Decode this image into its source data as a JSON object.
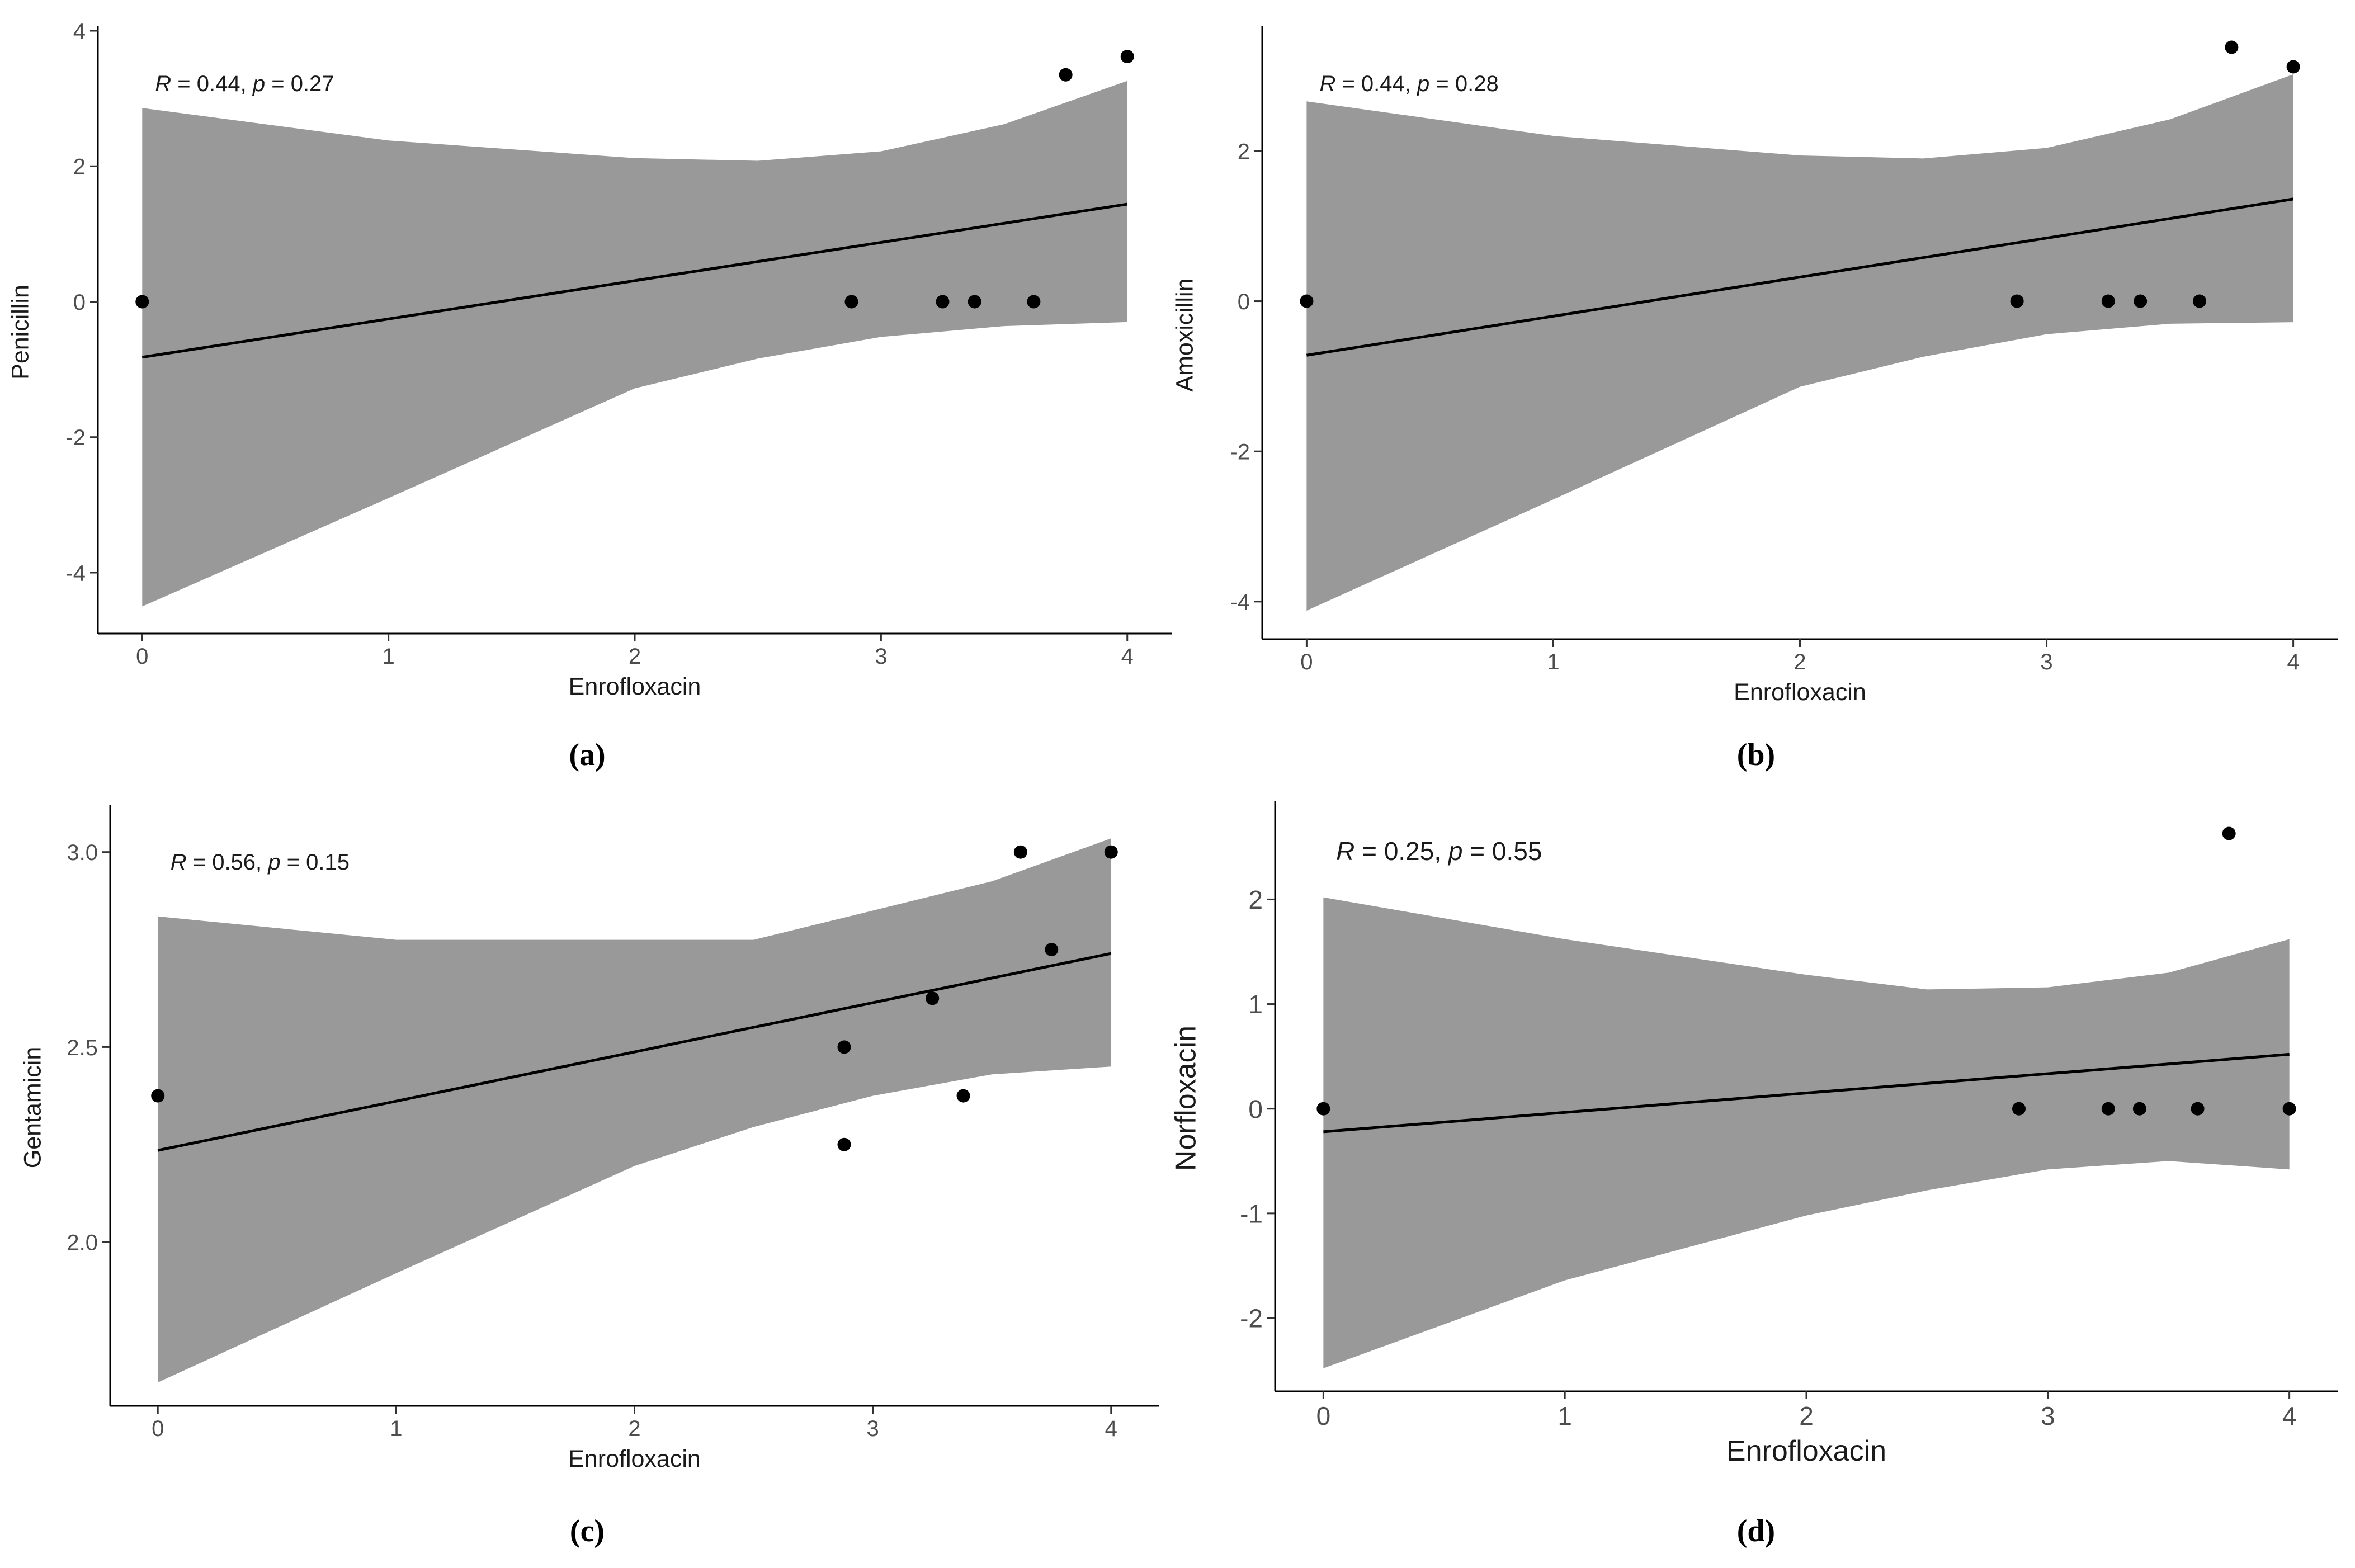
{
  "chart_data": [
    {
      "type": "scatter",
      "panel_label": "(a)",
      "xlabel": "Enrofloxacin",
      "ylabel": "Penicillin",
      "xlim": [
        -0.18,
        4.18
      ],
      "ylim": [
        -4.9,
        4.0
      ],
      "xticks": [
        0,
        1,
        2,
        3,
        4
      ],
      "yticks": [
        -4,
        -2,
        0,
        2,
        4
      ],
      "ytick_labels": [
        "-4",
        "-2",
        "0",
        "2",
        "4"
      ],
      "stats": {
        "r_label": "R",
        "r_value": " = 0.44, ",
        "p_label": "p",
        "p_value": " = 0.27"
      },
      "points": [
        [
          0,
          0
        ],
        [
          2.88,
          0
        ],
        [
          3.25,
          0
        ],
        [
          3.38,
          0
        ],
        [
          3.62,
          0
        ],
        [
          3.75,
          3.35
        ],
        [
          4.0,
          3.62
        ]
      ],
      "fit": [
        [
          0,
          -0.82
        ],
        [
          4.0,
          1.44
        ]
      ],
      "ci_upper": [
        [
          0,
          2.86
        ],
        [
          1.0,
          2.38
        ],
        [
          2.0,
          2.12
        ],
        [
          2.5,
          2.08
        ],
        [
          3.0,
          2.22
        ],
        [
          3.5,
          2.62
        ],
        [
          4.0,
          3.26
        ]
      ],
      "ci_lower": [
        [
          0,
          -4.5
        ],
        [
          1.0,
          -2.9
        ],
        [
          2.0,
          -1.28
        ],
        [
          2.5,
          -0.84
        ],
        [
          3.0,
          -0.52
        ],
        [
          3.5,
          -0.36
        ],
        [
          4.0,
          -0.3
        ]
      ]
    },
    {
      "type": "scatter",
      "panel_label": "(b)",
      "xlabel": "Enrofloxacin",
      "ylabel": "Amoxicillin",
      "xlim": [
        -0.18,
        4.18
      ],
      "ylim": [
        -4.5,
        3.6
      ],
      "xticks": [
        0,
        1,
        2,
        3,
        4
      ],
      "yticks": [
        -4,
        -2,
        0,
        2
      ],
      "ytick_labels": [
        "-4",
        "-2",
        "0",
        "2"
      ],
      "stats": {
        "r_label": "R",
        "r_value": " = 0.44, ",
        "p_label": "p",
        "p_value": " = 0.28"
      },
      "points": [
        [
          0,
          0
        ],
        [
          2.88,
          0
        ],
        [
          3.25,
          0
        ],
        [
          3.38,
          0
        ],
        [
          3.62,
          0
        ],
        [
          3.75,
          3.38
        ],
        [
          4.0,
          3.12
        ]
      ],
      "fit": [
        [
          0,
          -0.72
        ],
        [
          4.0,
          1.36
        ]
      ],
      "ci_upper": [
        [
          0,
          2.66
        ],
        [
          1.0,
          2.2
        ],
        [
          2.0,
          1.94
        ],
        [
          2.5,
          1.9
        ],
        [
          3.0,
          2.04
        ],
        [
          3.5,
          2.42
        ],
        [
          4.0,
          3.02
        ]
      ],
      "ci_lower": [
        [
          0,
          -4.12
        ],
        [
          1.0,
          -2.64
        ],
        [
          2.0,
          -1.14
        ],
        [
          2.5,
          -0.74
        ],
        [
          3.0,
          -0.44
        ],
        [
          3.5,
          -0.3
        ],
        [
          4.0,
          -0.28
        ]
      ]
    },
    {
      "type": "scatter",
      "panel_label": "(c)",
      "xlabel": "Enrofloxacin",
      "ylabel": "Gentamicin",
      "xlim": [
        -0.2,
        4.2
      ],
      "ylim": [
        1.58,
        3.11
      ],
      "xticks": [
        0,
        1,
        2,
        3,
        4
      ],
      "yticks": [
        2.0,
        2.5,
        3.0
      ],
      "ytick_labels": [
        "2.0",
        "2.5",
        "3.0"
      ],
      "stats": {
        "r_label": "R",
        "r_value": " = 0.56, ",
        "p_label": "p",
        "p_value": " = 0.15"
      },
      "points": [
        [
          0,
          2.375
        ],
        [
          2.88,
          2.5
        ],
        [
          2.88,
          2.25
        ],
        [
          3.25,
          2.625
        ],
        [
          3.38,
          2.375
        ],
        [
          3.62,
          3.0
        ],
        [
          3.75,
          2.75
        ],
        [
          4.0,
          3.0
        ]
      ],
      "fit": [
        [
          0,
          2.235
        ],
        [
          4.0,
          2.74
        ]
      ],
      "ci_upper": [
        [
          0,
          2.835
        ],
        [
          1.0,
          2.775
        ],
        [
          2.0,
          2.775
        ],
        [
          2.5,
          2.775
        ],
        [
          3.0,
          2.85
        ],
        [
          3.5,
          2.925
        ],
        [
          4.0,
          3.035
        ]
      ],
      "ci_lower": [
        [
          0,
          1.64
        ],
        [
          1.0,
          1.92
        ],
        [
          2.0,
          2.195
        ],
        [
          2.5,
          2.295
        ],
        [
          3.0,
          2.375
        ],
        [
          3.5,
          2.43
        ],
        [
          4.0,
          2.45
        ]
      ]
    },
    {
      "type": "scatter",
      "panel_label": "(d)",
      "xlabel": "Enrofloxacin",
      "ylabel": "Norfloxacin",
      "xlim": [
        -0.2,
        4.2
      ],
      "ylim": [
        -2.7,
        2.9
      ],
      "xticks": [
        0,
        1,
        2,
        3,
        4
      ],
      "yticks": [
        -2,
        -1,
        0,
        1,
        2
      ],
      "ytick_labels": [
        "-2",
        "-1",
        "0",
        "1",
        "2"
      ],
      "stats": {
        "r_label": "R",
        "r_value": " = 0.25, ",
        "p_label": "p",
        "p_value": " = 0.55"
      },
      "points": [
        [
          0,
          0
        ],
        [
          2.88,
          0
        ],
        [
          3.25,
          0
        ],
        [
          3.38,
          0
        ],
        [
          3.62,
          0
        ],
        [
          3.75,
          2.63
        ],
        [
          4.0,
          0
        ]
      ],
      "fit": [
        [
          0,
          -0.22
        ],
        [
          4.0,
          0.52
        ]
      ],
      "ci_upper": [
        [
          0,
          2.02
        ],
        [
          1.0,
          1.62
        ],
        [
          2.0,
          1.28
        ],
        [
          2.5,
          1.14
        ],
        [
          3.0,
          1.16
        ],
        [
          3.5,
          1.3
        ],
        [
          4.0,
          1.62
        ]
      ],
      "ci_lower": [
        [
          0,
          -2.48
        ],
        [
          1.0,
          -1.64
        ],
        [
          2.0,
          -1.02
        ],
        [
          2.5,
          -0.78
        ],
        [
          3.0,
          -0.58
        ],
        [
          3.5,
          -0.5
        ],
        [
          4.0,
          -0.58
        ]
      ]
    }
  ]
}
